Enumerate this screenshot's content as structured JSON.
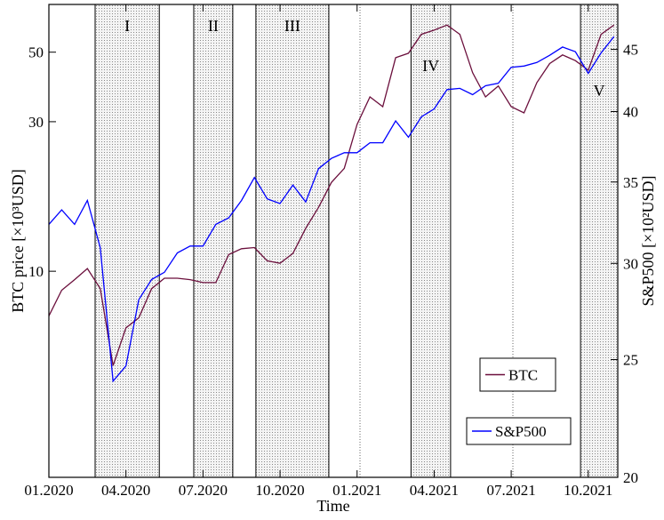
{
  "chart_data": {
    "type": "line",
    "xlabel": "Time",
    "ylabel": "BTC price [×10³USD]",
    "y2label": "S&P500 [×10²USD]",
    "log_y": true,
    "log_y2": true,
    "legend": "lower right",
    "xlim": [
      0,
      22.15
    ],
    "xticks": [
      {
        "value": 0,
        "label": "01.2020"
      },
      {
        "value": 3,
        "label": "04.2020"
      },
      {
        "value": 6,
        "label": "07.2020"
      },
      {
        "value": 9,
        "label": "10.2020"
      },
      {
        "value": 12,
        "label": "01.2021"
      },
      {
        "value": 15,
        "label": "04.2021"
      },
      {
        "value": 18,
        "label": "07.2021"
      },
      {
        "value": 21,
        "label": "10.2021"
      }
    ],
    "ylim": [
      2.2,
      71
    ],
    "yticks": [
      10,
      30,
      50
    ],
    "y2lim": [
      20,
      49
    ],
    "y2ticks": [
      20,
      25,
      30,
      35,
      40,
      45
    ],
    "regions": [
      {
        "label": "I",
        "start": 1.8,
        "end": 4.3
      },
      {
        "label": "II",
        "start": 5.64,
        "end": 7.16
      },
      {
        "label": "III",
        "start": 8.06,
        "end": 10.9
      },
      {
        "label": "IV",
        "start": 14.1,
        "end": 15.64
      },
      {
        "label": "V",
        "start": 20.7,
        "end": 22.15
      }
    ],
    "x": [
      0,
      0.5,
      1,
      1.5,
      2,
      2.5,
      3,
      3.5,
      4,
      4.5,
      5,
      5.5,
      6,
      6.5,
      7,
      7.5,
      8,
      8.5,
      9,
      9.5,
      10,
      10.5,
      11,
      11.5,
      12,
      12.5,
      13,
      13.5,
      14,
      14.5,
      15,
      15.5,
      16,
      16.5,
      17,
      17.5,
      18,
      18.5,
      19,
      19.5,
      20,
      20.5,
      21,
      21.5,
      22
    ],
    "series": [
      {
        "name": "BTC",
        "color": "#6b0f3c",
        "values": [
          7.2,
          8.7,
          9.4,
          10.2,
          8.8,
          5.0,
          6.6,
          7.1,
          8.8,
          9.5,
          9.5,
          9.4,
          9.2,
          9.2,
          11.3,
          11.8,
          11.9,
          10.8,
          10.6,
          11.4,
          13.7,
          16.0,
          19.2,
          21.3,
          29.4,
          36.0,
          33.5,
          48.0,
          49.6,
          57.0,
          58.8,
          61.0,
          57.0,
          43.0,
          36.0,
          39.0,
          33.5,
          32.0,
          40.0,
          46.0,
          49.0,
          47.0,
          43.8,
          57.0,
          61.0
        ]
      },
      {
        "name": "S&P500",
        "color": "#0000ff",
        "axis": "y2",
        "values": [
          32.3,
          33.2,
          32.3,
          33.8,
          30.9,
          24.0,
          24.7,
          28.0,
          29.1,
          29.5,
          30.6,
          31.0,
          31.0,
          32.3,
          32.7,
          33.8,
          35.3,
          33.9,
          33.6,
          34.8,
          33.7,
          35.9,
          36.6,
          37.0,
          37.0,
          37.7,
          37.7,
          39.3,
          38.1,
          39.6,
          40.2,
          41.7,
          41.8,
          41.3,
          42.0,
          42.2,
          43.5,
          43.6,
          43.9,
          44.5,
          45.2,
          44.8,
          43.0,
          44.7,
          46.1
        ]
      }
    ]
  }
}
